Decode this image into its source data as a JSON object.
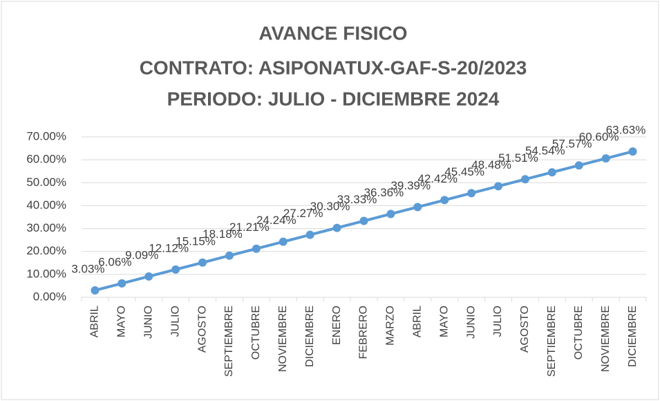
{
  "chart_data": {
    "type": "line",
    "title": [
      "AVANCE FISICO",
      "CONTRATO: ASIPONATUX-GAF-S-20/2023",
      "PERIODO: JULIO - DICIEMBRE 2024"
    ],
    "categories": [
      "ABRIL",
      "MAYO",
      "JUNIO",
      "JULIO",
      "AGOSTO",
      "SEPTIEMBRE",
      "OCTUBRE",
      "NOVIEMBRE",
      "DICIEMBRE",
      "ENERO",
      "FEBRERO",
      "MARZO",
      "ABRIL",
      "MAYO",
      "JUNIO",
      "JULIO",
      "AGOSTO",
      "SEPTIEMBRE",
      "OCTUBRE",
      "NOVIEMBRE",
      "DICIEMBRE"
    ],
    "values": [
      3.03,
      6.06,
      9.09,
      12.12,
      15.15,
      18.18,
      21.21,
      24.24,
      27.27,
      30.3,
      33.33,
      36.36,
      39.39,
      42.42,
      45.45,
      48.48,
      51.51,
      54.54,
      57.57,
      60.6,
      63.63
    ],
    "value_labels": [
      "3.03%",
      "6.06%",
      "9.09%",
      "12.12%",
      "15.15%",
      "18.18%",
      "21.21%",
      "24.24%",
      "27.27%",
      "30.30%",
      "33.33%",
      "36.36%",
      "39.39%",
      "42.42%",
      "45.45%",
      "48.48%",
      "51.51%",
      "54.54%",
      "57.57%",
      "60.60%",
      "63.63%"
    ],
    "color": "#5b9bd5",
    "ylim": [
      0,
      70
    ],
    "yticks": [
      {
        "value": 0,
        "label": "0.00%"
      },
      {
        "value": 10,
        "label": "10.00%"
      },
      {
        "value": 20,
        "label": "20.00%"
      },
      {
        "value": 30,
        "label": "30.00%"
      },
      {
        "value": 40,
        "label": "40.00%"
      },
      {
        "value": 50,
        "label": "50.00%"
      },
      {
        "value": 60,
        "label": "60.00%"
      },
      {
        "value": 70,
        "label": "70.00%"
      }
    ],
    "grid": true
  }
}
